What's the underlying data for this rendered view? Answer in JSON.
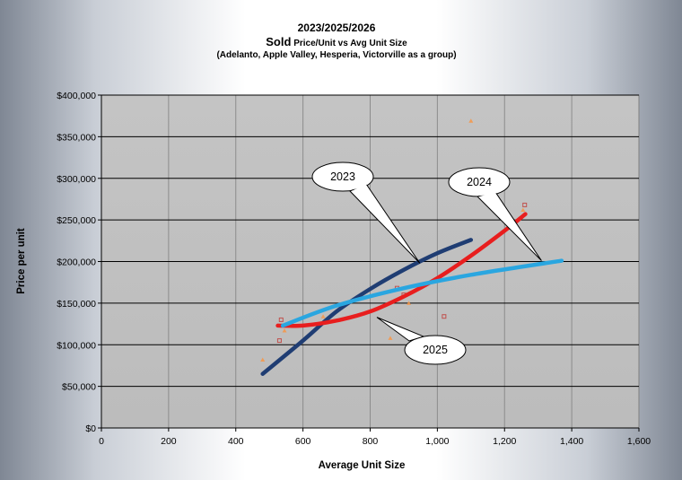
{
  "chart_data": {
    "type": "scatter",
    "title": {
      "line1": "2023/2025/2026",
      "line2_bold": "Sold",
      "line2_rest": " Price/Unit vs Avg Unit Size",
      "line3": "(Adelanto, Apple Valley, Hesperia, Victorville as a group)"
    },
    "xlabel": "Average Unit  Size",
    "ylabel": "Price per unit",
    "xlim": [
      0,
      1600
    ],
    "ylim": [
      0,
      400000
    ],
    "x_ticks": [
      "0",
      "200",
      "400",
      "600",
      "800",
      "1,000",
      "1,200",
      "1,400",
      "1,600"
    ],
    "y_ticks": [
      "$0",
      "$50,000",
      "$100,000",
      "$150,000",
      "$200,000",
      "$250,000",
      "$300,000",
      "$350,000",
      "$400,000"
    ],
    "grid": true,
    "plot_background": "#c0c0c0",
    "series": [
      {
        "color": "#c0504d",
        "marker": "square",
        "points": [
          [
            530,
            105000
          ],
          [
            535,
            130000
          ],
          [
            880,
            168000
          ],
          [
            900,
            160000
          ],
          [
            1020,
            134000
          ],
          [
            1260,
            268000
          ]
        ]
      },
      {
        "color": "#f79646",
        "marker": "triangle",
        "points": [
          [
            480,
            82000
          ],
          [
            545,
            117000
          ],
          [
            660,
            134000
          ],
          [
            860,
            108000
          ],
          [
            915,
            150000
          ],
          [
            1100,
            369000
          ],
          [
            1255,
            262000
          ]
        ]
      }
    ],
    "trendlines": [
      {
        "color": "#1f3d73",
        "points": [
          [
            480,
            65000
          ],
          [
            600,
            105000
          ],
          [
            700,
            140000
          ],
          [
            800,
            167000
          ],
          [
            900,
            190000
          ],
          [
            1000,
            210000
          ],
          [
            1100,
            226000
          ]
        ]
      },
      {
        "color": "#e81e1e",
        "points": [
          [
            525,
            123000
          ],
          [
            600,
            123000
          ],
          [
            700,
            129000
          ],
          [
            800,
            140000
          ],
          [
            900,
            158000
          ],
          [
            1000,
            180000
          ],
          [
            1100,
            207000
          ],
          [
            1200,
            237000
          ],
          [
            1262,
            257000
          ]
        ]
      },
      {
        "color": "#2aa6e0",
        "points": [
          [
            540,
            123000
          ],
          [
            700,
            147000
          ],
          [
            900,
            168000
          ],
          [
            1100,
            184000
          ],
          [
            1370,
            201000
          ]
        ]
      }
    ],
    "callouts": [
      {
        "label": "2023",
        "anchor": [
          948,
          198000
        ]
      },
      {
        "label": "2024",
        "anchor": [
          1310,
          201000
        ]
      },
      {
        "label": "2025",
        "anchor": [
          820,
          133000
        ]
      }
    ]
  }
}
